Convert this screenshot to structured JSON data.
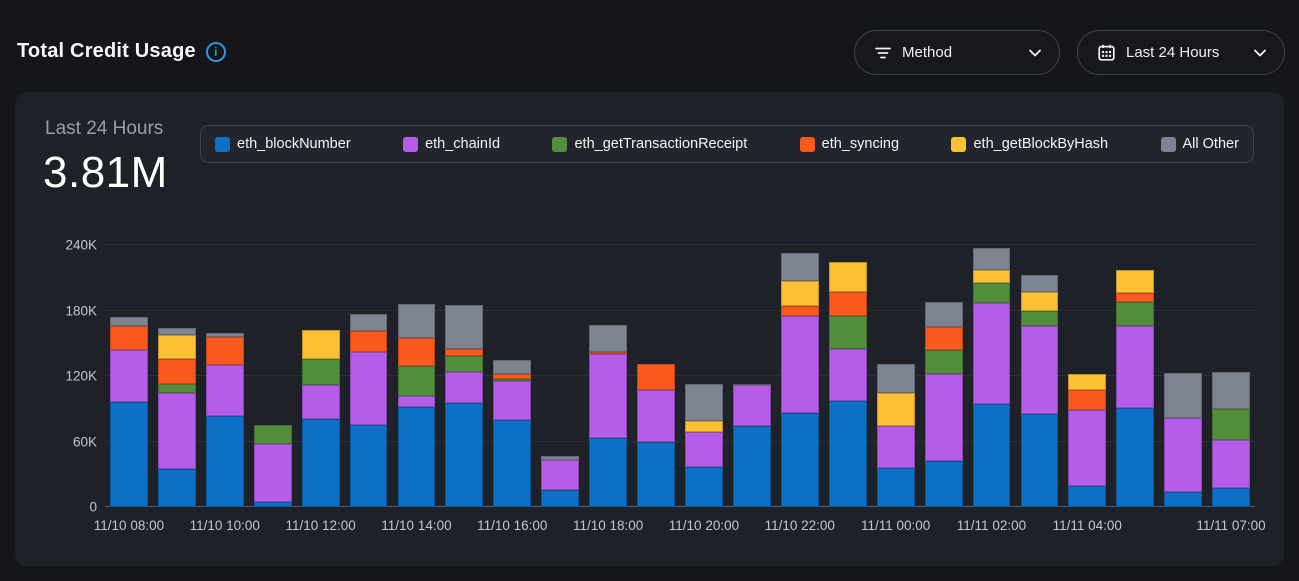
{
  "header": {
    "title": "Total Credit Usage",
    "filters": {
      "method_label": "Method",
      "range_label": "Last 24 Hours"
    }
  },
  "summary": {
    "period_label": "Last 24 Hours",
    "total": "3.81M"
  },
  "colors": {
    "accent_info": "#2f93dd",
    "card_bg": "#1e2127",
    "page_bg": "#15161a",
    "legend_bg": "#22252c",
    "border": "#3e434b",
    "gridline": "#2c2f35",
    "axis_baseline": "#5a5e66",
    "axis_text": "#c3c7cd"
  },
  "icons": [
    "info-icon",
    "filter-icon",
    "calendar-icon",
    "chevron-down-icon"
  ],
  "chart_data": {
    "type": "bar",
    "stacked": true,
    "title": "Total Credit Usage",
    "unit": "credits",
    "values_in": "thousands",
    "ylim": [
      0,
      240
    ],
    "ytick_labels": [
      "0",
      "60K",
      "120K",
      "180K",
      "240K"
    ],
    "grid": true,
    "legend_position": "top",
    "x": [
      "11/10 08:00",
      "11/10 09:00",
      "11/10 10:00",
      "11/10 11:00",
      "11/10 12:00",
      "11/10 13:00",
      "11/10 14:00",
      "11/10 15:00",
      "11/10 16:00",
      "11/10 17:00",
      "11/10 18:00",
      "11/10 19:00",
      "11/10 20:00",
      "11/10 21:00",
      "11/10 22:00",
      "11/10 23:00",
      "11/11 00:00",
      "11/11 01:00",
      "11/11 02:00",
      "11/11 03:00",
      "11/11 04:00",
      "11/11 05:00",
      "11/11 06:00",
      "11/11 07:00"
    ],
    "tick_labels": [
      "11/10 08:00",
      "11/10 10:00",
      "11/10 12:00",
      "11/10 14:00",
      "11/10 16:00",
      "11/10 18:00",
      "11/10 20:00",
      "11/10 22:00",
      "11/11 00:00",
      "11/11 02:00",
      "11/11 04:00",
      "11/11 07:00"
    ],
    "tick_indices": [
      0,
      2,
      4,
      6,
      8,
      10,
      12,
      14,
      16,
      18,
      20,
      23
    ],
    "series": [
      {
        "name": "eth_blockNumber",
        "color": "#0d6fc5",
        "values": [
          96,
          35,
          83,
          5,
          81,
          75,
          92,
          95,
          80,
          16,
          63,
          60,
          37,
          74,
          86,
          97,
          36,
          42,
          94,
          85,
          19,
          91,
          14,
          17
        ]
      },
      {
        "name": "eth_chainId",
        "color": "#b55ce8",
        "values": [
          48,
          69,
          47,
          53,
          31,
          67,
          10,
          29,
          35,
          27,
          77,
          47,
          32,
          38,
          89,
          48,
          38,
          80,
          93,
          81,
          70,
          75,
          68,
          44
        ]
      },
      {
        "name": "eth_getTransactionReceipt",
        "color": "#538e3d",
        "values": [
          0,
          9,
          0,
          17,
          24,
          0,
          27,
          14,
          2,
          0,
          0,
          0,
          0,
          1,
          0,
          30,
          0,
          22,
          18,
          14,
          0,
          22,
          0,
          29
        ]
      },
      {
        "name": "eth_syncing",
        "color": "#fb5a1f",
        "values": [
          22,
          23,
          26,
          0,
          0,
          19,
          26,
          7,
          5,
          0,
          2,
          24,
          0,
          0,
          9,
          22,
          0,
          21,
          0,
          0,
          18,
          8,
          0,
          0
        ]
      },
      {
        "name": "eth_getBlockByHash",
        "color": "#fec133",
        "values": [
          0,
          22,
          0,
          0,
          26,
          0,
          0,
          0,
          0,
          0,
          0,
          0,
          10,
          0,
          23,
          27,
          30,
          0,
          12,
          17,
          15,
          21,
          0,
          0
        ]
      },
      {
        "name": "All Other",
        "color": "#7d8593",
        "values": [
          8,
          6,
          3,
          0,
          0,
          16,
          31,
          40,
          13,
          4,
          25,
          0,
          34,
          0,
          26,
          0,
          27,
          23,
          20,
          16,
          0,
          0,
          41,
          34
        ]
      }
    ]
  }
}
